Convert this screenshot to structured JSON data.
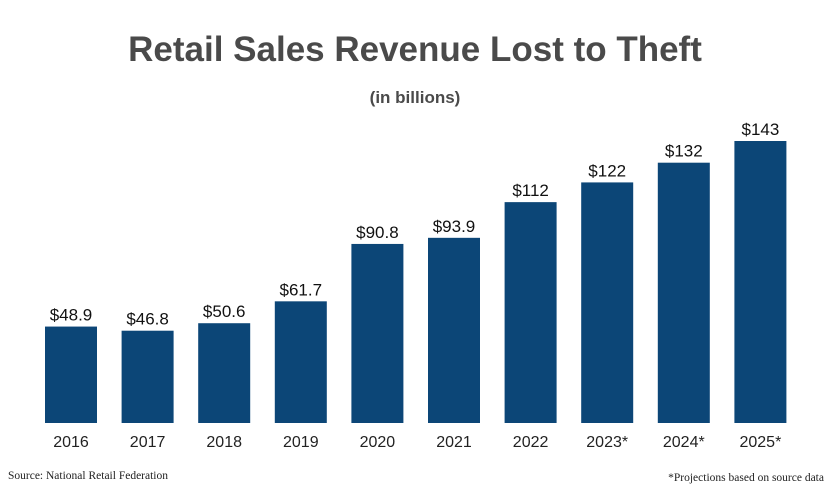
{
  "chart_data": {
    "type": "bar",
    "title": "Retail Sales Revenue Lost to Theft",
    "subtitle": "(in billions)",
    "categories": [
      "2016",
      "2017",
      "2018",
      "2019",
      "2020",
      "2021",
      "2022",
      "2023*",
      "2024*",
      "2025*"
    ],
    "values": [
      48.9,
      46.8,
      50.6,
      61.7,
      90.8,
      93.9,
      112,
      122,
      132,
      143
    ],
    "data_labels": [
      "$48.9",
      "$46.8",
      "$50.6",
      "$61.7",
      "$90.8",
      "$93.9",
      "$112",
      "$122",
      "$132",
      "$143"
    ],
    "xlabel": "",
    "ylabel": "",
    "ylim": [
      0,
      143
    ],
    "grid": false,
    "bar_color": "#0c4677"
  },
  "footer": {
    "source": "Source: National Retail Federation",
    "note": "*Projections based on source data"
  }
}
